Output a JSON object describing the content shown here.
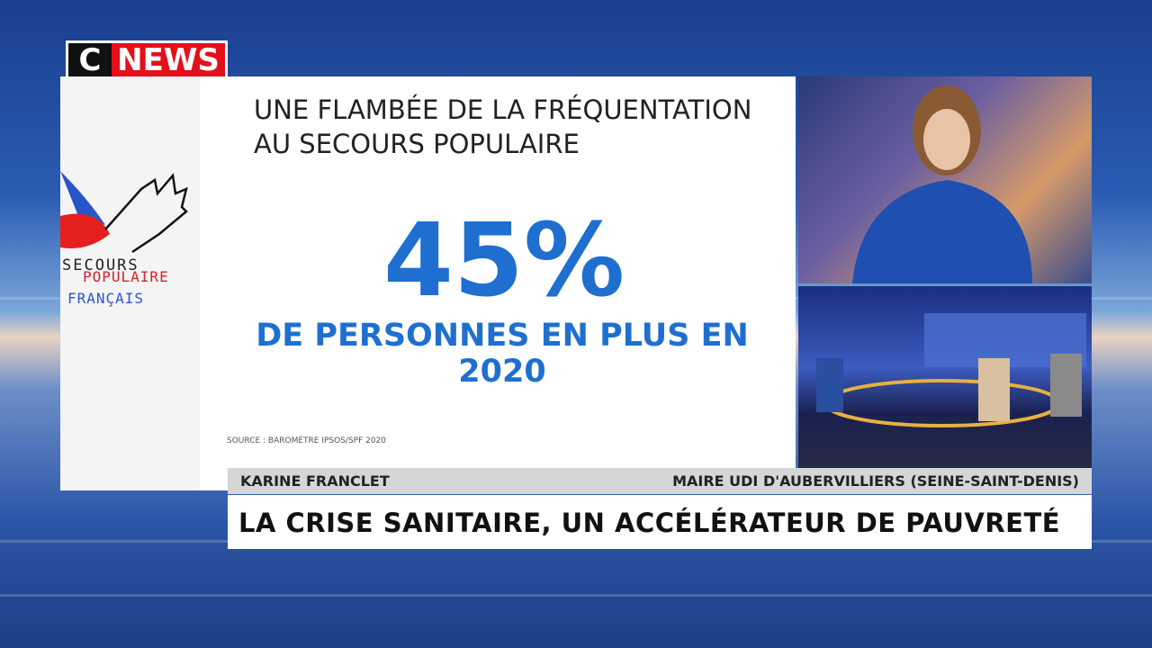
{
  "logo": {
    "c": "C",
    "news": "NEWS"
  },
  "graphic": {
    "title_lines": [
      "UNE FLAMBÉE DE LA FRÉQUENTATION",
      "AU SECOURS POPULAIRE"
    ],
    "figure": "45%",
    "subtitle": "DE PERSONNES EN PLUS EN 2020",
    "source": "SOURCE : BAROMÈTRE IPSOS/SPF 2020",
    "organization_logo": [
      "SECOURS",
      "POPULAIRE",
      "FRANÇAIS"
    ]
  },
  "lower_third": {
    "name": "KARINE FRANCLET",
    "role": "MAIRE UDI D'AUBERVILLIERS (SEINE-SAINT-DENIS)",
    "headline": "LA CRISE SANITAIRE, UN ACCÉLÉRATEUR DE PAUVRETÉ"
  }
}
